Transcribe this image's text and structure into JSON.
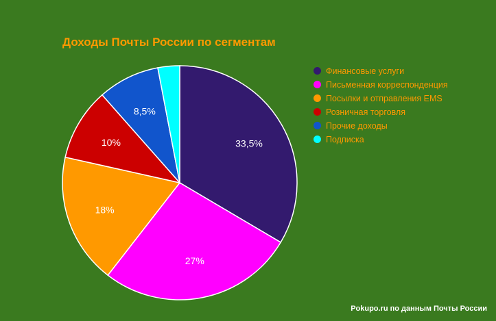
{
  "chart_data": {
    "type": "pie",
    "title": "Доходы Почты России по сегментам",
    "slices": [
      {
        "label": "Финансовые услуги",
        "value": 33.5,
        "display": "33,5%",
        "color": "#331a6e"
      },
      {
        "label": "Письменная корреспонденция",
        "value": 27,
        "display": "27%",
        "color": "#ff00ff"
      },
      {
        "label": "Посылки и отправления EMS",
        "value": 18,
        "display": "18%",
        "color": "#ff9900"
      },
      {
        "label": "Розничная торговля",
        "value": 10,
        "display": "10%",
        "color": "#cc0000"
      },
      {
        "label": "Прочие доходы",
        "value": 8.5,
        "display": "8,5%",
        "color": "#1155cc"
      },
      {
        "label": "Подписка",
        "value": 3,
        "display": "",
        "color": "#00ffff"
      }
    ],
    "legend_position": "right"
  },
  "source": "Pokupo.ru по данным Почты России"
}
